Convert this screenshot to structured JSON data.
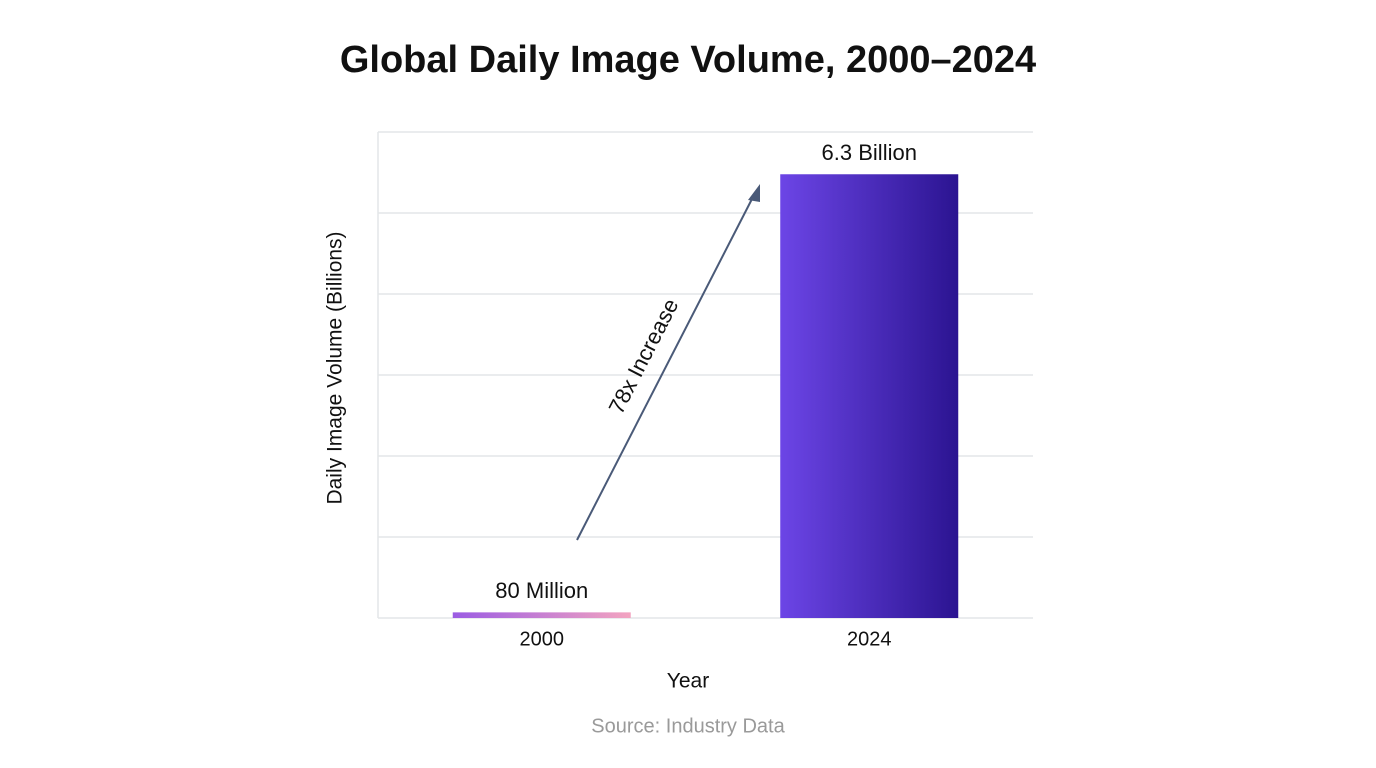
{
  "chart_data": {
    "type": "bar",
    "title": "Global Daily Image Volume, 2000–2024",
    "x_label": "Year",
    "y_label": "Daily Image Volume (Billions)",
    "categories": [
      "2000",
      "2024"
    ],
    "values": [
      0.08,
      6.3
    ],
    "value_labels": [
      "80 Million",
      "6.3 Billion"
    ],
    "colors": [
      [
        "#9b5ce3",
        "#f3a4c0"
      ],
      [
        "#6c45e6",
        "#2b1491"
      ]
    ],
    "ylim": [
      0,
      6.9
    ],
    "yticks": [
      0,
      1.15,
      2.3,
      3.45,
      4.6,
      5.75,
      6.9
    ],
    "grid": true,
    "annotation": "78x Increase",
    "source": "Source: Industry Data"
  }
}
